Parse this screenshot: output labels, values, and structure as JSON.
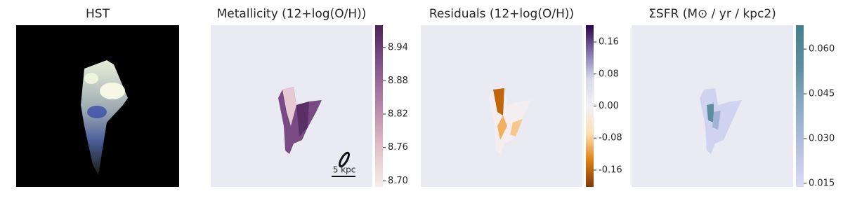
{
  "chart_data": [
    {
      "type": "image",
      "title": "HST"
    },
    {
      "type": "heatmap",
      "title": "Metallicity (12+log(O/H))",
      "annotation": "5 kpc",
      "colors": [
        "#f6eeea",
        "#e2bfc8",
        "#b886a8",
        "#86558b",
        "#4d2456"
      ],
      "clim": [
        8.689,
        8.98
      ],
      "cticks": [
        {
          "value": 8.7,
          "label": "8.70"
        },
        8.76,
        8.82,
        8.88,
        8.94
      ]
    },
    {
      "type": "heatmap",
      "title": "Residuals (12+log(O/H))",
      "colors": [
        "#7f3b08",
        "#e08214",
        "#fee0b6",
        "#f2f0f5",
        "#d8daeb",
        "#8073ac",
        "#2d004b"
      ],
      "clim": [
        -0.202,
        0.202
      ],
      "cticks": [
        -0.16,
        -0.08,
        {
          "value": 0,
          "label": "0.00"
        },
        0.08,
        0.16
      ]
    },
    {
      "type": "heatmap",
      "title": "ΣSFR (M⊙ / yr / kpc2)",
      "colors": [
        "#dcdcf2",
        "#b4bfe0",
        "#8aaac8",
        "#5d8d9e",
        "#44808f"
      ],
      "clim": [
        0.0138,
        0.068
      ],
      "cticks": [
        0.015,
        {
          "value": 0.03,
          "label": "0.030"
        },
        0.045,
        {
          "value": 0.06,
          "label": "0.060"
        }
      ]
    }
  ]
}
